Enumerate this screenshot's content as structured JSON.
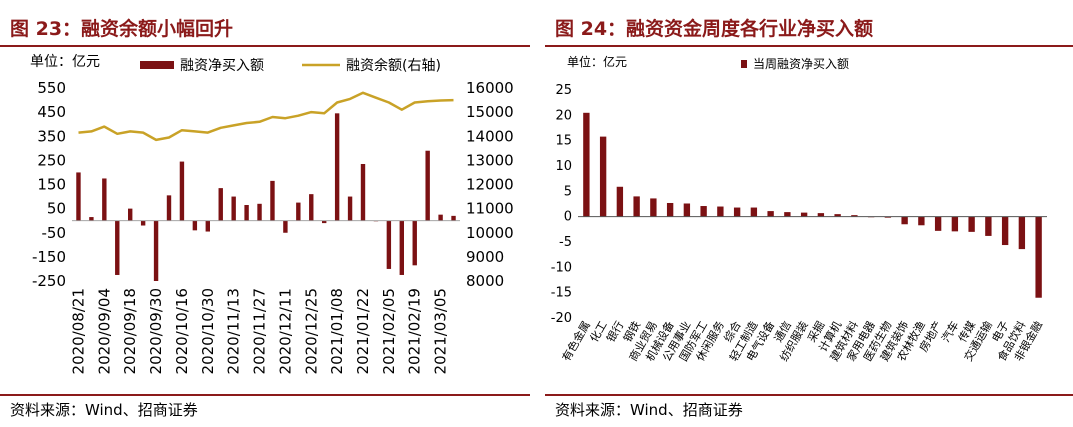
{
  "left": {
    "title": "图 23：融资余额小幅回升",
    "source": "资料来源：Wind、招商证券",
    "unit": "单位：亿元",
    "legend": {
      "bar": "融资净买入额",
      "line": "融资余额(右轴)"
    }
  },
  "right": {
    "title": "图 24：融资资金周度各行业净买入额",
    "source": "资料来源：Wind、招商证券",
    "unit": "单位：亿元",
    "legend": {
      "bar": "当周融资净买入额"
    }
  },
  "colors": {
    "bar": "#7b1113",
    "line": "#c9a227",
    "accent": "#8b1a1a",
    "grid": "#e6e6e6"
  },
  "chart_data": [
    {
      "type": "bar+line",
      "series": [
        {
          "name": "融资净买入额",
          "type": "bar",
          "axis": "left",
          "values": [
            200,
            15,
            175,
            -225,
            50,
            -20,
            -250,
            105,
            245,
            -40,
            -45,
            135,
            100,
            65,
            70,
            165,
            -50,
            75,
            110,
            -10,
            445,
            100,
            235,
            0,
            -200,
            -225,
            -185,
            290,
            25,
            20
          ]
        },
        {
          "name": "融资余额(右轴)",
          "type": "line",
          "axis": "right",
          "values": [
            14150,
            14200,
            14400,
            14100,
            14200,
            14150,
            13850,
            13950,
            14250,
            14200,
            14150,
            14350,
            14450,
            14550,
            14600,
            14800,
            14750,
            14850,
            15000,
            14950,
            15400,
            15550,
            15800,
            15600,
            15400,
            15100,
            15400,
            15450,
            15480,
            15500
          ]
        }
      ],
      "x_ticks": [
        "2020/08/21",
        "2020/09/04",
        "2020/09/18",
        "2020/09/30",
        "2020/10/16",
        "2020/10/30",
        "2020/11/13",
        "2020/11/27",
        "2020/12/11",
        "2020/12/25",
        "2021/01/08",
        "2021/01/22",
        "2021/02/05",
        "2021/02/19",
        "2021/03/05"
      ],
      "y_left": {
        "min": -250,
        "max": 550,
        "ticks": [
          550,
          450,
          350,
          250,
          150,
          50,
          -50,
          -150,
          -250
        ]
      },
      "y_right": {
        "min": 8000,
        "max": 16000,
        "ticks": [
          16000,
          15000,
          14000,
          13000,
          12000,
          11000,
          10000,
          9000,
          8000
        ]
      },
      "grid": false,
      "legend_position": "top"
    },
    {
      "type": "bar",
      "categories": [
        "有色金属",
        "化工",
        "银行",
        "钢铁",
        "商业贸易",
        "机械设备",
        "公用事业",
        "国防军工",
        "休闲服务",
        "综合",
        "轻工制造",
        "电气设备",
        "通信",
        "纺织服装",
        "采掘",
        "计算机",
        "建筑材料",
        "家用电器",
        "医药生物",
        "建筑装饰",
        "农林牧渔",
        "房地产",
        "汽车",
        "传媒",
        "交通运输",
        "电子",
        "食品饮料",
        "非银金融"
      ],
      "values": [
        20.5,
        15.8,
        5.9,
        4.0,
        3.6,
        2.7,
        2.6,
        2.1,
        2.0,
        1.8,
        1.8,
        1.1,
        0.9,
        0.8,
        0.7,
        0.5,
        0.3,
        -0.1,
        -0.2,
        -1.5,
        -1.7,
        -2.8,
        -2.9,
        -3.0,
        -3.8,
        -5.6,
        -6.4,
        -16.0
      ],
      "series": [
        {
          "name": "当周融资净买入额"
        }
      ],
      "y": {
        "min": -20,
        "max": 25,
        "ticks": [
          25,
          20,
          15,
          10,
          5,
          0,
          -5,
          -10,
          -15,
          -20
        ]
      },
      "grid": false,
      "legend_position": "top"
    }
  ]
}
